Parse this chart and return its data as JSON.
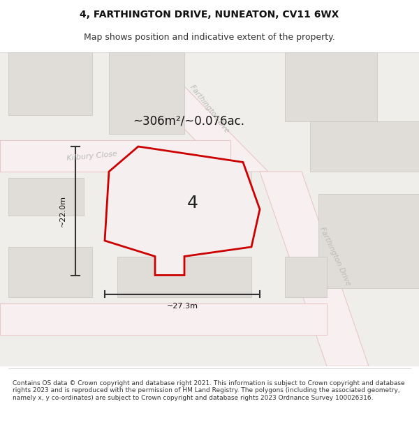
{
  "title": "4, FARTHINGTON DRIVE, NUNEATON, CV11 6WX",
  "subtitle": "Map shows position and indicative extent of the property.",
  "footer": "Contains OS data © Crown copyright and database right 2021. This information is subject to Crown copyright and database rights 2023 and is reproduced with the permission of HM Land Registry. The polygons (including the associated geometry, namely x, y co-ordinates) are subject to Crown copyright and database rights 2023 Ordnance Survey 100026316.",
  "area_label": "~306m²/~0.076ac.",
  "width_label": "~27.3m",
  "height_label": "~22.0m",
  "property_number": "4",
  "bg_color": "#f5f4f2",
  "map_bg": "#f0eeeb",
  "road_color": "#ffffff",
  "road_outline": "#e8c8c8",
  "road_fill": "#f9f4f4",
  "building_fill": "#e0ddd8",
  "building_outline": "#cccccc",
  "property_outline": "#cc0000",
  "property_fill": "#f5f0f0",
  "dim_color": "#333333",
  "street_label_color": "#aaaaaa",
  "kilbury_label": "Kilbury Close",
  "farthington_top": "Farthington Dve",
  "farthington_right": "Farthington Drive",
  "title_fontsize": 10,
  "subtitle_fontsize": 9,
  "footer_fontsize": 6.5
}
